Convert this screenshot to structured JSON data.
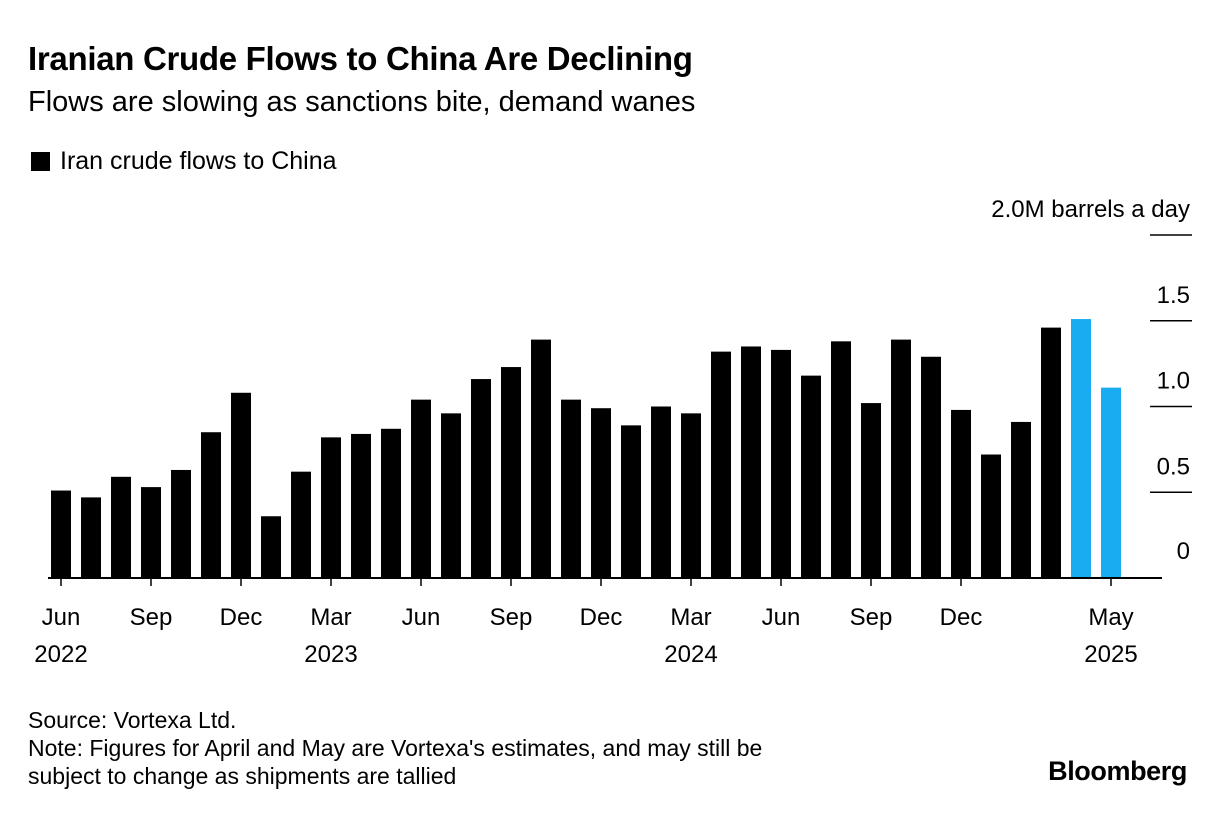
{
  "header": {
    "title": "Iranian Crude Flows to China Are Declining",
    "subtitle": "Flows are slowing as sanctions bite, demand wanes"
  },
  "legend": {
    "label": "Iran crude flows to China",
    "color": "#000000"
  },
  "chart_data": {
    "type": "bar",
    "series": [
      {
        "name": "Iran crude flows to China",
        "categories": [
          "Jun 2022",
          "Jul 2022",
          "Aug 2022",
          "Sep 2022",
          "Oct 2022",
          "Nov 2022",
          "Dec 2022",
          "Jan 2023",
          "Feb 2023",
          "Mar 2023",
          "Apr 2023",
          "May 2023",
          "Jun 2023",
          "Jul 2023",
          "Aug 2023",
          "Sep 2023",
          "Oct 2023",
          "Nov 2023",
          "Dec 2023",
          "Jan 2024",
          "Feb 2024",
          "Mar 2024",
          "Apr 2024",
          "May 2024",
          "Jun 2024",
          "Jul 2024",
          "Aug 2024",
          "Sep 2024",
          "Oct 2024",
          "Nov 2024",
          "Dec 2024",
          "Jan 2025",
          "Feb 2025",
          "Mar 2025",
          "Apr 2025",
          "May 2025"
        ],
        "values": [
          0.51,
          0.47,
          0.59,
          0.53,
          0.63,
          0.85,
          1.08,
          0.36,
          0.62,
          0.82,
          0.84,
          0.87,
          1.04,
          0.96,
          1.16,
          1.23,
          1.39,
          1.04,
          0.99,
          0.89,
          1.0,
          0.96,
          1.32,
          1.35,
          1.33,
          1.18,
          1.38,
          1.02,
          1.39,
          1.29,
          0.98,
          0.72,
          0.91,
          1.46,
          1.51,
          1.11
        ],
        "colors": [
          "#000000",
          "#000000",
          "#000000",
          "#000000",
          "#000000",
          "#000000",
          "#000000",
          "#000000",
          "#000000",
          "#000000",
          "#000000",
          "#000000",
          "#000000",
          "#000000",
          "#000000",
          "#000000",
          "#000000",
          "#000000",
          "#000000",
          "#000000",
          "#000000",
          "#000000",
          "#000000",
          "#000000",
          "#000000",
          "#000000",
          "#000000",
          "#000000",
          "#000000",
          "#000000",
          "#000000",
          "#000000",
          "#000000",
          "#000000",
          "#1AACF0",
          "#1AACF0"
        ]
      }
    ],
    "estimate_color": "#1AACF0",
    "ylim": [
      0,
      2.0
    ],
    "y_ticks": [
      {
        "value": 0,
        "label": "0"
      },
      {
        "value": 0.5,
        "label": "0.5"
      },
      {
        "value": 1.0,
        "label": "1.0"
      },
      {
        "value": 1.5,
        "label": "1.5"
      },
      {
        "value": 2.0,
        "label": "2.0M barrels a day"
      }
    ],
    "x_ticks": [
      {
        "index": 0,
        "month": "Jun",
        "year": "2022"
      },
      {
        "index": 3,
        "month": "Sep",
        "year": ""
      },
      {
        "index": 6,
        "month": "Dec",
        "year": ""
      },
      {
        "index": 9,
        "month": "Mar",
        "year": "2023"
      },
      {
        "index": 12,
        "month": "Jun",
        "year": ""
      },
      {
        "index": 15,
        "month": "Sep",
        "year": ""
      },
      {
        "index": 18,
        "month": "Dec",
        "year": ""
      },
      {
        "index": 21,
        "month": "Mar",
        "year": "2024"
      },
      {
        "index": 24,
        "month": "Jun",
        "year": ""
      },
      {
        "index": 27,
        "month": "Sep",
        "year": ""
      },
      {
        "index": 30,
        "month": "Dec",
        "year": ""
      },
      {
        "index": 35,
        "month": "May",
        "year": "2025"
      }
    ],
    "y_axis_position": "right",
    "grid": true
  },
  "footer": {
    "source": "Source: Vortexa Ltd.",
    "note_line1": "Note: Figures for April and May are Vortexa's estimates, and may still be",
    "note_line2": "subject to change as shipments are tallied"
  },
  "brand": "Bloomberg"
}
